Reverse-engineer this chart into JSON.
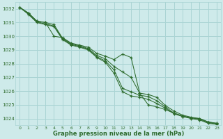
{
  "background_color": "#ceeaea",
  "grid_color": "#aad4d4",
  "line_color": "#2d6b2d",
  "xlabel": "Graphe pression niveau de la mer (hPa)",
  "xlabel_color": "#2d6b2d",
  "ylim": [
    1023.5,
    1032.5
  ],
  "xlim": [
    -0.5,
    23.5
  ],
  "yticks": [
    1024,
    1025,
    1026,
    1027,
    1028,
    1029,
    1030,
    1031,
    1032
  ],
  "xticks": [
    0,
    1,
    2,
    3,
    4,
    5,
    6,
    7,
    8,
    9,
    10,
    11,
    12,
    13,
    14,
    15,
    16,
    17,
    18,
    19,
    20,
    21,
    22,
    23
  ],
  "series": [
    [
      1032.1,
      1031.7,
      1031.1,
      1031.0,
      1030.0,
      1029.9,
      1029.5,
      1029.35,
      1029.2,
      1028.75,
      1028.55,
      1028.3,
      1028.7,
      1028.45,
      1025.85,
      1025.0,
      1024.85,
      1024.65,
      1024.4,
      1024.15,
      1024.05,
      1024.0,
      1023.75,
      1023.65
    ],
    [
      1032.1,
      1031.7,
      1031.1,
      1031.0,
      1030.85,
      1029.85,
      1029.45,
      1029.3,
      1029.1,
      1028.6,
      1028.35,
      1027.8,
      1027.4,
      1027.0,
      1025.85,
      1025.75,
      1025.55,
      1024.95,
      1024.55,
      1024.25,
      1024.1,
      1024.0,
      1023.75,
      1023.65
    ],
    [
      1032.1,
      1031.65,
      1031.05,
      1030.9,
      1030.75,
      1029.8,
      1029.4,
      1029.25,
      1029.05,
      1028.5,
      1028.2,
      1027.55,
      1026.2,
      1025.95,
      1025.7,
      1025.6,
      1025.3,
      1024.85,
      1024.4,
      1024.2,
      1024.05,
      1023.95,
      1023.7,
      1023.6
    ],
    [
      1032.1,
      1031.6,
      1031.0,
      1030.85,
      1030.7,
      1029.75,
      1029.35,
      1029.2,
      1029.0,
      1028.45,
      1028.1,
      1027.3,
      1025.95,
      1025.65,
      1025.55,
      1025.4,
      1025.1,
      1024.75,
      1024.35,
      1024.15,
      1024.0,
      1023.9,
      1023.65,
      1023.58
    ]
  ]
}
